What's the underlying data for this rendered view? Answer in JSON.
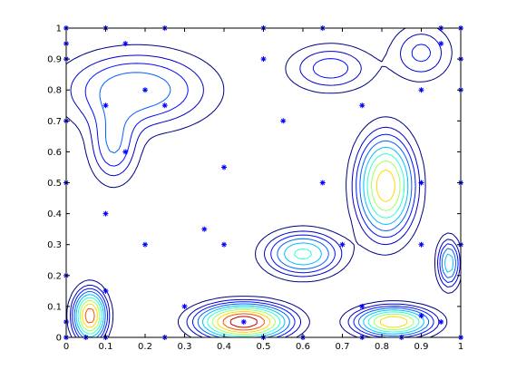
{
  "chart_data": {
    "type": "contour",
    "title": "",
    "xlabel": "",
    "ylabel": "",
    "xlim": [
      0,
      1
    ],
    "ylim": [
      0,
      1
    ],
    "x_ticks": [
      "0",
      "0.1",
      "0.2",
      "0.3",
      "0.4",
      "0.5",
      "0.6",
      "0.7",
      "0.8",
      "0.9",
      "1"
    ],
    "y_ticks": [
      "0",
      "0.1",
      "0.2",
      "0.3",
      "0.4",
      "0.5",
      "0.6",
      "0.7",
      "0.8",
      "0.9",
      "1"
    ],
    "x_tick_values": [
      0,
      0.1,
      0.2,
      0.3,
      0.4,
      0.5,
      0.6,
      0.7,
      0.8,
      0.9,
      1
    ],
    "y_tick_values": [
      0,
      0.1,
      0.2,
      0.3,
      0.4,
      0.5,
      0.6,
      0.7,
      0.8,
      0.9,
      1
    ],
    "grid": false,
    "colormap": "jet",
    "marker_color": "#0000ff",
    "markers": [
      [
        0,
        1
      ],
      [
        0.1,
        1
      ],
      [
        0.25,
        1
      ],
      [
        0.5,
        1
      ],
      [
        0.65,
        1
      ],
      [
        0.95,
        1
      ],
      [
        1,
        1
      ],
      [
        0,
        0.95
      ],
      [
        0.15,
        0.95
      ],
      [
        0.95,
        0.95
      ],
      [
        0,
        0.9
      ],
      [
        0.5,
        0.9
      ],
      [
        1,
        0.9
      ],
      [
        0.2,
        0.8
      ],
      [
        0.9,
        0.8
      ],
      [
        1,
        0.8
      ],
      [
        0.1,
        0.75
      ],
      [
        0.25,
        0.75
      ],
      [
        0.75,
        0.75
      ],
      [
        0,
        0.7
      ],
      [
        0.55,
        0.7
      ],
      [
        0.15,
        0.6
      ],
      [
        0.4,
        0.55
      ],
      [
        0,
        0.5
      ],
      [
        0.65,
        0.5
      ],
      [
        0.9,
        0.5
      ],
      [
        1,
        0.5
      ],
      [
        0.1,
        0.4
      ],
      [
        0.35,
        0.35
      ],
      [
        0.2,
        0.3
      ],
      [
        0.4,
        0.3
      ],
      [
        0.7,
        0.3
      ],
      [
        0.9,
        0.3
      ],
      [
        1,
        0.3
      ],
      [
        0,
        0.2
      ],
      [
        0.1,
        0.15
      ],
      [
        0.3,
        0.1
      ],
      [
        0.75,
        0.1
      ],
      [
        0.9,
        0.07
      ],
      [
        0,
        0.05
      ],
      [
        0.45,
        0.05
      ],
      [
        0.95,
        0.05
      ],
      [
        0,
        0
      ],
      [
        0.05,
        0
      ],
      [
        0.1,
        0
      ],
      [
        0.25,
        0
      ],
      [
        0.5,
        0
      ],
      [
        0.6,
        0
      ],
      [
        0.75,
        0
      ],
      [
        0.85,
        0
      ],
      [
        1,
        0
      ]
    ],
    "peaks": [
      {
        "x": 0.45,
        "y": 0.05,
        "sx": 0.07,
        "sy": 0.035,
        "a": 1.0
      },
      {
        "x": 0.06,
        "y": 0.07,
        "sx": 0.025,
        "sy": 0.05,
        "a": 0.85
      },
      {
        "x": 0.83,
        "y": 0.05,
        "sx": 0.06,
        "sy": 0.03,
        "a": 0.75
      },
      {
        "x": 0.81,
        "y": 0.49,
        "sx": 0.045,
        "sy": 0.1,
        "a": 0.72
      },
      {
        "x": 0.6,
        "y": 0.27,
        "sx": 0.06,
        "sy": 0.045,
        "a": 0.45
      },
      {
        "x": 0.97,
        "y": 0.24,
        "sx": 0.018,
        "sy": 0.05,
        "a": 0.4
      },
      {
        "x": 0.18,
        "y": 0.8,
        "sx": 0.12,
        "sy": 0.08,
        "a": 0.32
      },
      {
        "x": 0.12,
        "y": 0.62,
        "sx": 0.04,
        "sy": 0.08,
        "a": 0.25
      },
      {
        "x": 0.67,
        "y": 0.87,
        "sx": 0.07,
        "sy": 0.05,
        "a": 0.22
      },
      {
        "x": 0.9,
        "y": 0.92,
        "sx": 0.05,
        "sy": 0.06,
        "a": 0.2
      }
    ],
    "contour_levels": [
      0.06,
      0.12,
      0.18,
      0.25,
      0.33,
      0.42,
      0.52,
      0.63,
      0.75,
      0.88
    ]
  }
}
